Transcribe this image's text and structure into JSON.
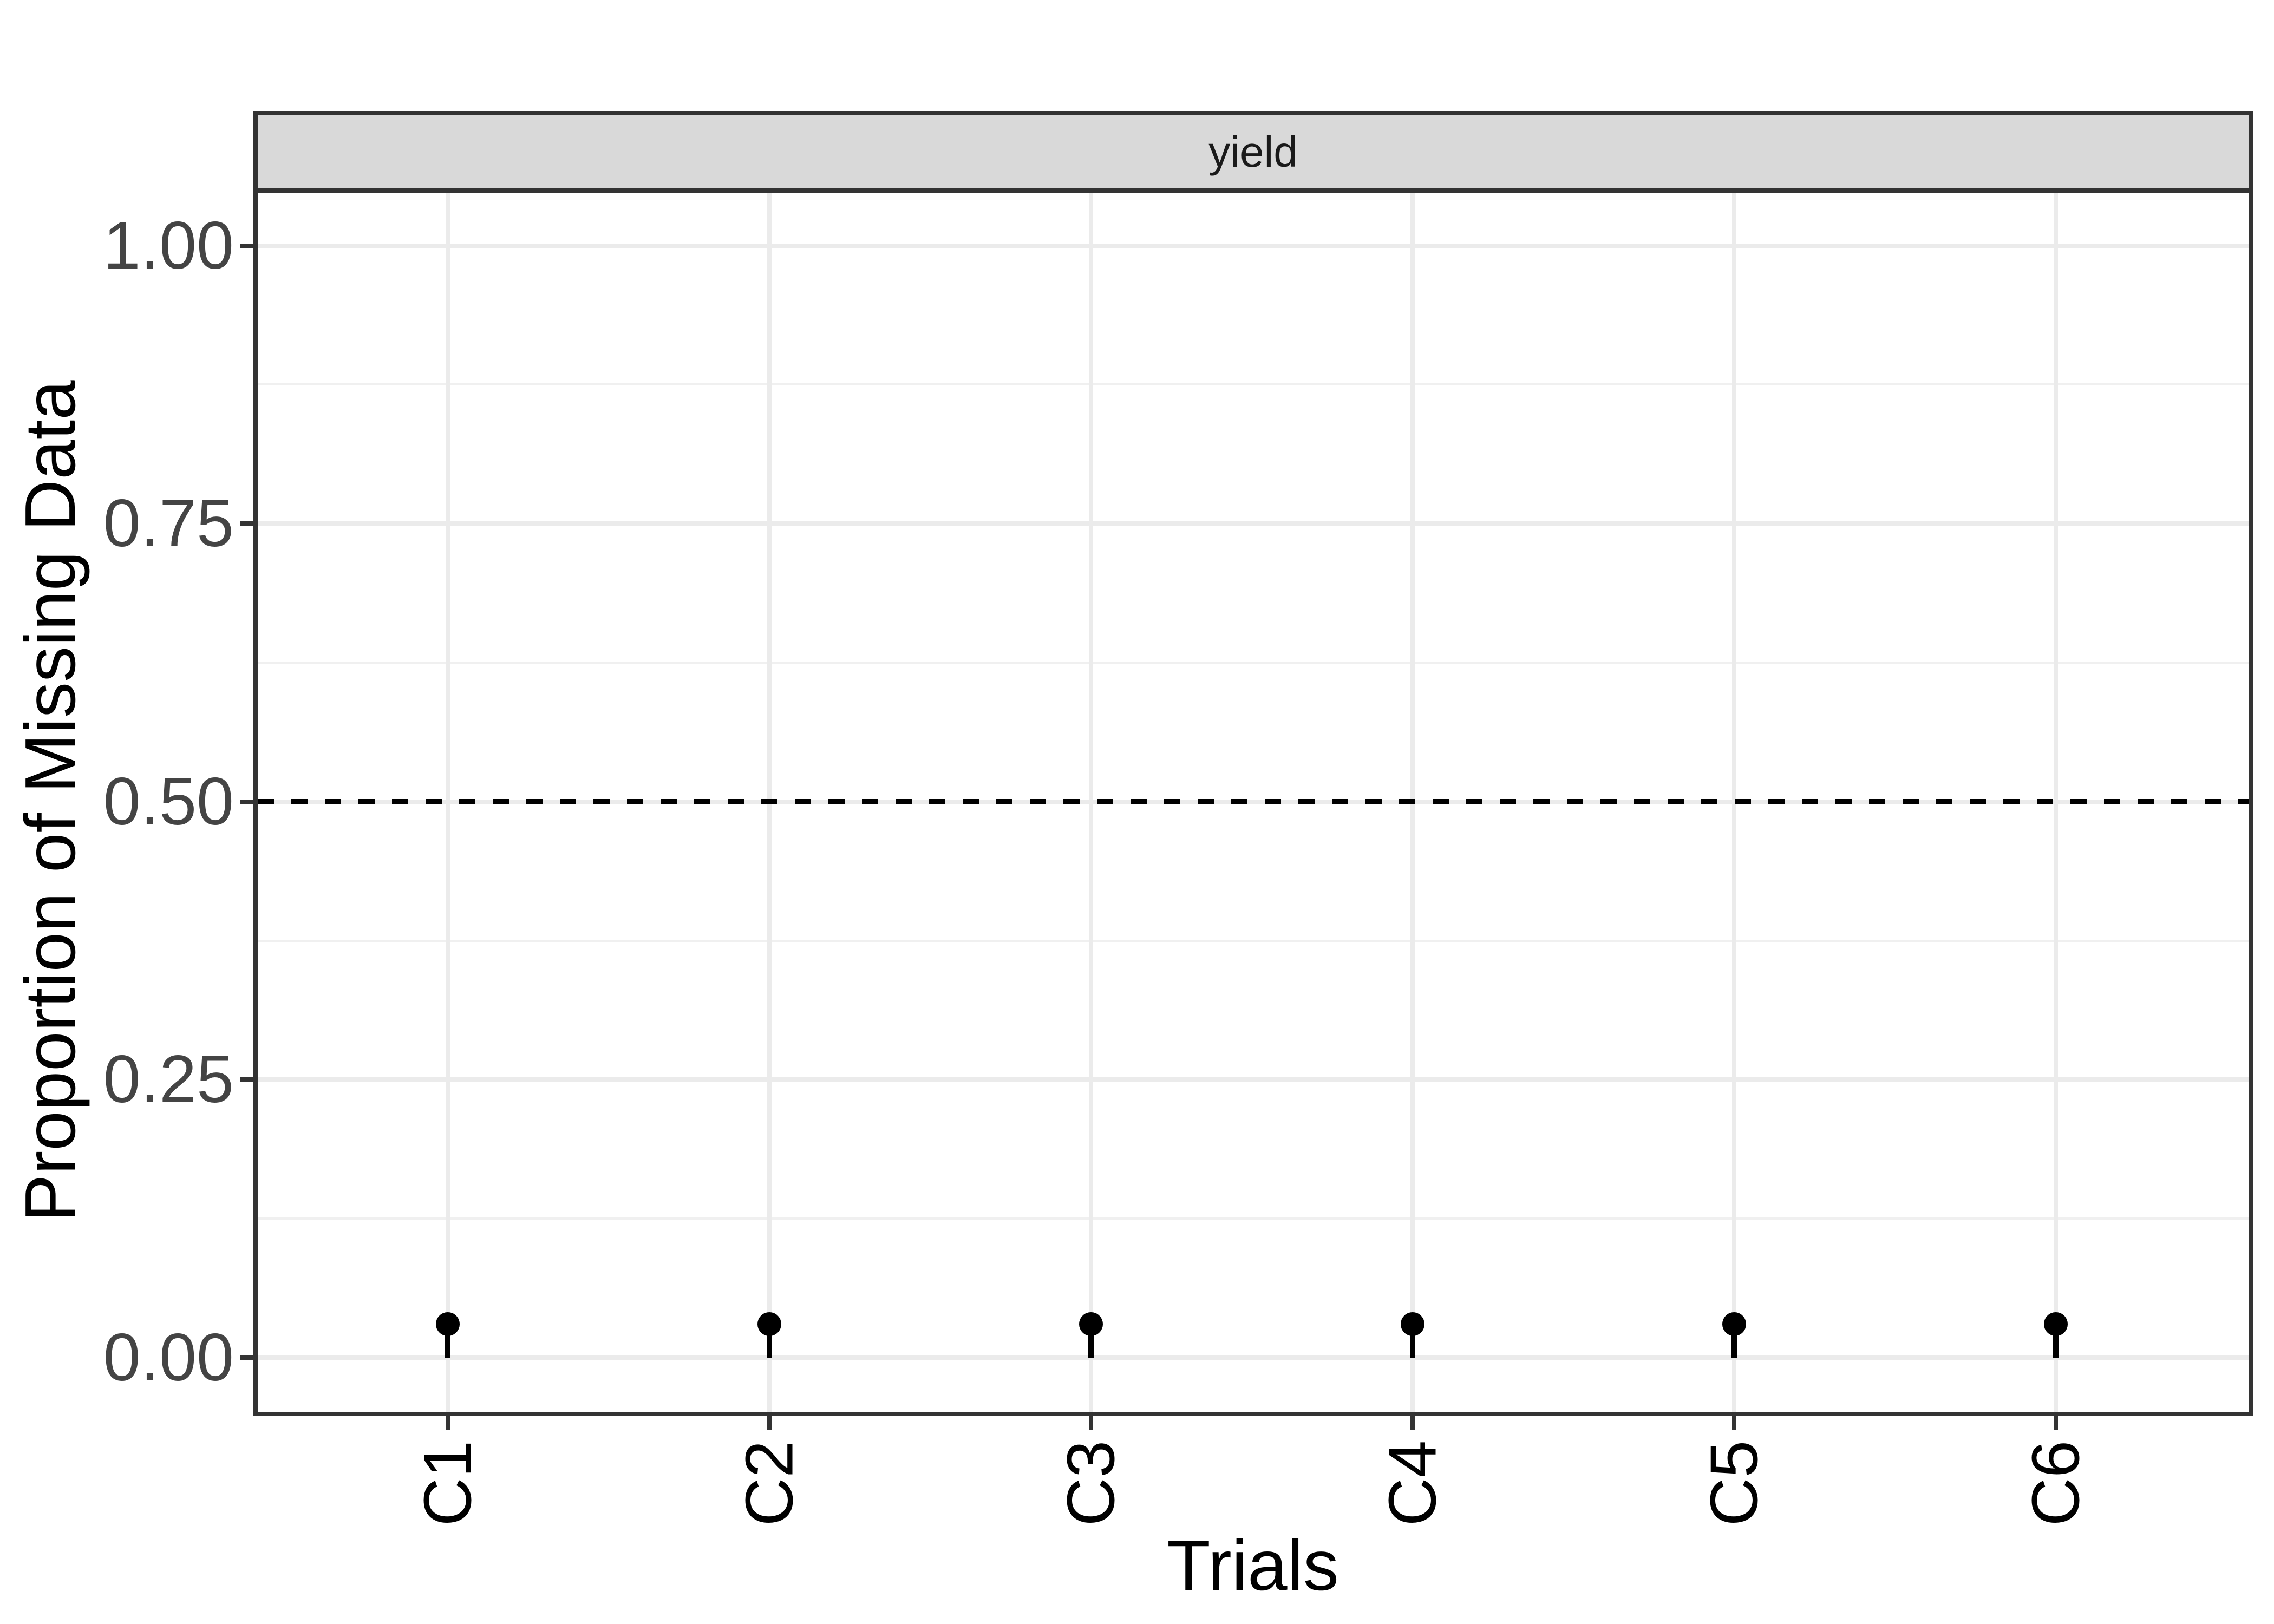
{
  "figure": {
    "background": "#FFFFFF"
  },
  "facet": {
    "label": "yield",
    "strip_fill": "#D9D9D9",
    "strip_text_color": "#1A1A1A"
  },
  "axes": {
    "x": {
      "title": "Trials",
      "tick_labels": [
        "C1",
        "C2",
        "C3",
        "C4",
        "C5",
        "C6"
      ],
      "label_rotation_deg": 90,
      "label_color": "#000000"
    },
    "y": {
      "title": "Proportion of Missing Data",
      "tick_labels": [
        "1.00",
        "0.75",
        "0.50",
        "0.25",
        "0.00"
      ],
      "tick_values": [
        1.0,
        0.75,
        0.5,
        0.25,
        0.0
      ],
      "label_color": "#444444"
    }
  },
  "reference_line": {
    "y": 0.5,
    "style": "dashed",
    "color": "#000000"
  },
  "style": {
    "panel_border_color": "#333333",
    "grid_major_color": "#EBEBEB",
    "grid_minor_color": "#F0F0F0",
    "point_color": "#000000"
  },
  "chart_data": {
    "type": "scatter",
    "subtype": "lollipop",
    "title": "",
    "facet_label": "yield",
    "categories": [
      "C1",
      "C2",
      "C3",
      "C4",
      "C5",
      "C6"
    ],
    "values": [
      0.03,
      0.03,
      0.03,
      0.03,
      0.03,
      0.03
    ],
    "xlabel": "Trials",
    "ylabel": "Proportion of Missing Data",
    "ylim": [
      -0.05,
      1.05
    ],
    "yticks": [
      0.0,
      0.25,
      0.5,
      0.75,
      1.0
    ],
    "hline_dashed": 0.5,
    "grid": true,
    "legend": false
  }
}
